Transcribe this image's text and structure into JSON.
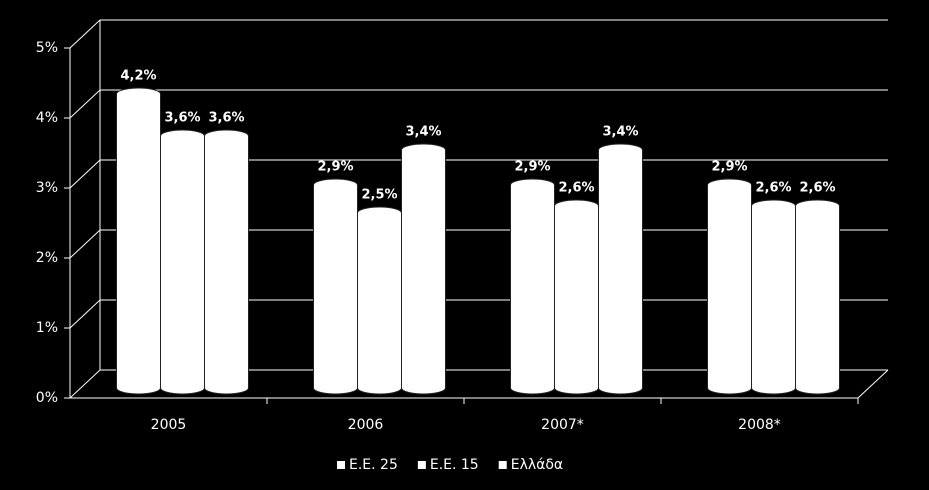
{
  "chart_data": {
    "type": "bar",
    "categories": [
      "2005",
      "2006",
      "2007*",
      "2008*"
    ],
    "series": [
      {
        "name": "Ε.Ε. 25",
        "color": "#ffffff",
        "values": [
          4.2,
          2.9,
          2.9,
          2.9
        ],
        "value_labels": [
          "4,2%",
          "2,9%",
          "2,9%",
          "2,9%"
        ]
      },
      {
        "name": "Ε.Ε. 15",
        "color": "#ffffff",
        "values": [
          3.6,
          2.5,
          2.6,
          2.6
        ],
        "value_labels": [
          "3,6%",
          "2,5%",
          "2,6%",
          "2,6%"
        ]
      },
      {
        "name": "Ελλάδα",
        "color": "#ffffff",
        "values": [
          3.6,
          3.4,
          3.4,
          2.6
        ],
        "value_labels": [
          "3,6%",
          "3,4%",
          "3,4%",
          "2,6%"
        ]
      }
    ],
    "ylim": [
      0,
      5
    ],
    "yticks": [
      {
        "value": 0,
        "label": "0%"
      },
      {
        "value": 1,
        "label": "1%"
      },
      {
        "value": 2,
        "label": "2%"
      },
      {
        "value": 3,
        "label": "3%"
      },
      {
        "value": 4,
        "label": "4%"
      },
      {
        "value": 5,
        "label": "5%"
      }
    ],
    "grid": true,
    "legend": "bottom"
  }
}
